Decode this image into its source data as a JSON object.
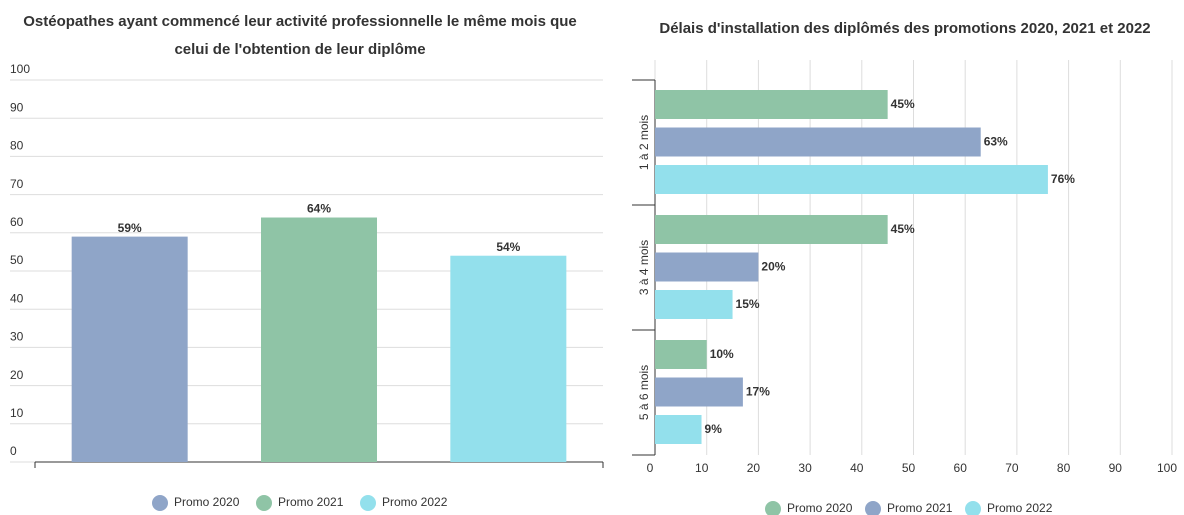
{
  "chart_data": [
    {
      "type": "bar",
      "title": "Ostéopathes ayant commencé leur activité professionnelle le même mois que celui de l'obtention de leur diplôme",
      "categories": [
        "Promo 2020",
        "Promo 2021",
        "Promo 2022"
      ],
      "values": [
        59,
        64,
        54
      ],
      "value_labels": [
        "59%",
        "64%",
        "54%"
      ],
      "colors": [
        "#8fa5c8",
        "#8fc4a6",
        "#93e0ec"
      ],
      "ylim": [
        0,
        100
      ],
      "yticks": [
        0,
        10,
        20,
        30,
        40,
        50,
        60,
        70,
        80,
        90,
        100
      ],
      "grid": true,
      "legend": "bottom"
    },
    {
      "type": "hbar",
      "title": "Délais d'installation des diplômés des promotions 2020, 2021 et 2022",
      "categories": [
        "1 à 2 mois",
        "3 à 4 mois",
        "5 à 6 mois"
      ],
      "series": [
        {
          "name": "Promo 2020",
          "color": "#8fc4a6",
          "values": [
            45,
            45,
            10
          ],
          "value_labels": [
            "45%",
            "45%",
            "10%"
          ]
        },
        {
          "name": "Promo 2021",
          "color": "#8fa5c8",
          "values": [
            63,
            20,
            17
          ],
          "value_labels": [
            "63%",
            "20%",
            "17%"
          ]
        },
        {
          "name": "Promo 2022",
          "color": "#93e0ec",
          "values": [
            76,
            15,
            9
          ],
          "value_labels": [
            "76%",
            "15%",
            "9%"
          ]
        }
      ],
      "xlim": [
        0,
        100
      ],
      "xticks": [
        0,
        10,
        20,
        30,
        40,
        50,
        60,
        70,
        80,
        90,
        100
      ],
      "grid": true,
      "legend": "bottom"
    }
  ]
}
